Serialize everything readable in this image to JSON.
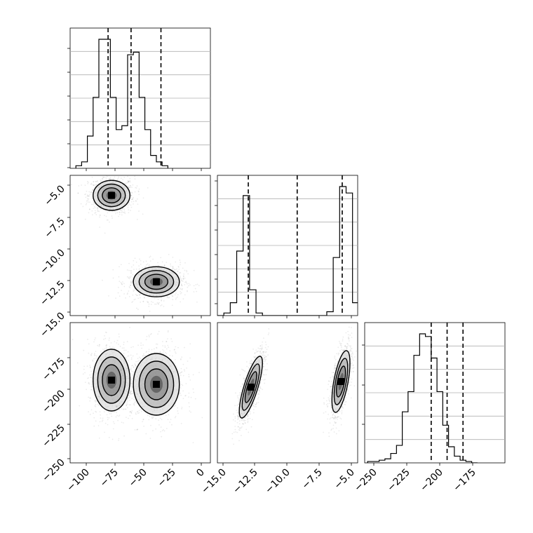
{
  "chart_data": [
    {
      "panel": "hist-param-1",
      "type": "histogram",
      "x_ticks": [
        "−100",
        "−75",
        "−50",
        "−25",
        "0"
      ],
      "xlim": [
        -115,
        7
      ],
      "grid": true,
      "quantile_lines": [
        -82,
        -62,
        -36
      ],
      "bins": {
        "start": -110,
        "width": 5,
        "counts": [
          0.02,
          0.05,
          0.25,
          0.55,
          1.0,
          1.0,
          0.55,
          0.3,
          0.33,
          0.88,
          0.9,
          0.55,
          0.3,
          0.1,
          0.05,
          0.02
        ]
      }
    },
    {
      "panel": "hist-param-2",
      "type": "histogram",
      "x_ticks": [
        "−15.0",
        "−12.5",
        "−10.0",
        "−7.5",
        "−5.0"
      ],
      "xlim": [
        -15.5,
        -4.6
      ],
      "grid": true,
      "quantile_lines": [
        -13.1,
        -9.3,
        -5.8
      ],
      "bins": {
        "start": -15.5,
        "width": 0.5,
        "counts": [
          0.0,
          0.02,
          0.1,
          0.5,
          0.93,
          0.2,
          0.02,
          0.0,
          0.0,
          0.0,
          0.0,
          0.0,
          0.0,
          0.0,
          0.0,
          0.0,
          0.0,
          0.03,
          0.45,
          1.0,
          0.95,
          0.1
        ]
      }
    },
    {
      "panel": "hist-param-3",
      "type": "histogram",
      "x_ticks": [
        "−250",
        "−225",
        "−200",
        "−175"
      ],
      "xlim": [
        -257,
        -160
      ],
      "grid": true,
      "quantile_lines": [
        -211,
        -200,
        -189
      ],
      "bins": {
        "start": -255,
        "width": 4,
        "counts": [
          0.01,
          0.01,
          0.02,
          0.03,
          0.07,
          0.13,
          0.38,
          0.53,
          0.8,
          0.96,
          0.94,
          0.78,
          0.53,
          0.28,
          0.12,
          0.05,
          0.02,
          0.01,
          0.0
        ]
      }
    },
    {
      "panel": "2d-param-2-vs-param-1",
      "type": "scatter",
      "x_ticks": [
        "−100",
        "−75",
        "−50",
        "−25",
        "0"
      ],
      "y_ticks": [
        "−5.0",
        "−7.5",
        "−10.0",
        "−12.5",
        "−15.0"
      ],
      "xlim": [
        -115,
        7
      ],
      "ylim": [
        -15.5,
        -4.3
      ],
      "blobs": [
        {
          "cx": -79,
          "cy": -5.9,
          "sx": 8,
          "sy": 0.6,
          "rho": 0.0
        },
        {
          "cx": -40,
          "cy": -12.8,
          "sx": 10,
          "sy": 0.6,
          "rho": 0.0
        }
      ]
    },
    {
      "panel": "2d-param-3-vs-param-1",
      "type": "scatter",
      "x_ticks": [
        "−100",
        "−75",
        "−50",
        "−25",
        "0"
      ],
      "y_ticks": [
        "−175",
        "−200",
        "−225",
        "−250"
      ],
      "xlim": [
        -115,
        7
      ],
      "ylim": [
        -255,
        -155
      ],
      "blobs": [
        {
          "cx": -79,
          "cy": -196,
          "sx": 8,
          "sy": 11,
          "rho": 0.0
        },
        {
          "cx": -40,
          "cy": -199,
          "sx": 10,
          "sy": 11,
          "rho": 0.0
        }
      ]
    },
    {
      "panel": "2d-param-3-vs-param-2",
      "type": "scatter",
      "x_ticks": [
        "−15.0",
        "−12.5",
        "−10.0",
        "−7.5",
        "−5.0"
      ],
      "y_ticks": [
        "−175",
        "−200",
        "−225",
        "−250"
      ],
      "xlim": [
        -15.5,
        -4.6
      ],
      "ylim": [
        -255,
        -155
      ],
      "blobs": [
        {
          "cx": -12.9,
          "cy": -201,
          "sx": 0.45,
          "sy": 11,
          "rho": 0.78
        },
        {
          "cx": -5.9,
          "cy": -197,
          "sx": 0.35,
          "sy": 11,
          "rho": 0.6
        }
      ]
    }
  ]
}
